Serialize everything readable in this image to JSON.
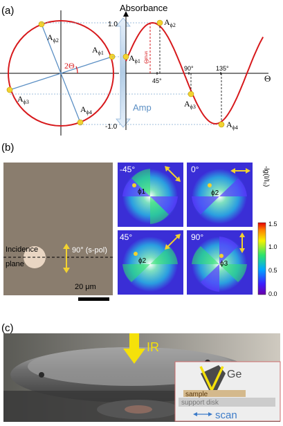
{
  "panel_a": {
    "label": "(a)",
    "absorbance_label": "Absorbance",
    "amp_label": "Amp",
    "theta_axis_label": "Θ",
    "two_theta_label": "2Θ",
    "theta_max_label": "Θ",
    "theta_max_sub": "max",
    "y_ticks": [
      "1.0",
      "-1.0"
    ],
    "x_ticks": [
      "45°",
      "90°",
      "135°"
    ],
    "circle_points": [
      {
        "label": "A",
        "sub": "ϕ1"
      },
      {
        "label": "A",
        "sub": "ϕ2"
      },
      {
        "label": "A",
        "sub": "ϕ3"
      },
      {
        "label": "A",
        "sub": "ϕ4"
      }
    ],
    "curve_points": [
      {
        "label": "A",
        "sub": "ϕ1"
      },
      {
        "label": "A",
        "sub": "ϕ2"
      },
      {
        "label": "A",
        "sub": "ϕ3"
      },
      {
        "label": "A",
        "sub": "ϕ4"
      }
    ],
    "colors": {
      "curve": "#d7191c",
      "point": "#f2d230",
      "lines": "#5b8fc4",
      "amp_arrow": "#b5cfe8"
    }
  },
  "panel_b": {
    "label": "(b)",
    "pol_label": "90° (s-pol)",
    "incidence_label_1": "Incidence",
    "incidence_label_2": "plane",
    "scale_label": "20 μm",
    "maps": [
      {
        "angle": "-45°",
        "phi": "ϕ1"
      },
      {
        "angle": "0°",
        "phi": "ϕ2"
      },
      {
        "angle": "45°",
        "phi": "ϕ2"
      },
      {
        "angle": "90°",
        "phi": "ϕ3"
      }
    ],
    "colorbar_label": "-lg(I/I₀)",
    "colorbar_ticks": [
      "1.5",
      "1.0",
      "0.5",
      "0.0"
    ]
  },
  "panel_c": {
    "label": "(c)",
    "ir_label": "IR",
    "ge_label": "Ge",
    "sample_label": "sample",
    "support_label": "support disk",
    "scan_label": "scan"
  }
}
